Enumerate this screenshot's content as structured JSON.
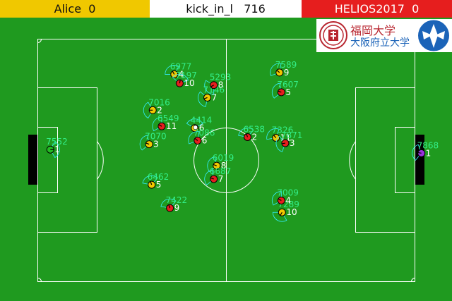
{
  "scoreboard": {
    "left_team": "Alice",
    "left_score": "0",
    "mode": "kick_in_l",
    "cycle": "716",
    "right_team": "HELIOS2017",
    "right_score": "0"
  },
  "colors": {
    "field": "#1f9a1f",
    "left_team": "#f0c800",
    "right_team": "#e61e1e",
    "label": "#33ee88",
    "view_cone": "#33eeff",
    "goalie_left": "#22bb22",
    "goalie_right": "#9933dd"
  },
  "sponsor_logo": {
    "emblem_icon": "osaka-emblem-icon",
    "text_line1": "福岡大学",
    "text_line2": "大阪府立大学",
    "wing_icon": "wing-logo-icon"
  },
  "players": [
    {
      "team": "left",
      "num": "1",
      "stamina": "7552",
      "x": -49.0,
      "y": -3.0,
      "heading": 0
    },
    {
      "team": "left",
      "num": "2",
      "stamina": "7016",
      "x": -20.5,
      "y": -14.0,
      "heading": 180
    },
    {
      "team": "left",
      "num": "3",
      "stamina": "7070",
      "x": -21.5,
      "y": -4.5,
      "heading": 200
    },
    {
      "team": "left",
      "num": "4",
      "stamina": "6977",
      "x": -14.5,
      "y": -24.0,
      "heading": 240
    },
    {
      "team": "left",
      "num": "5",
      "stamina": "6462",
      "x": -20.8,
      "y": 6.8,
      "heading": 250
    },
    {
      "type": "note"
    },
    {
      "team": "left",
      "num": "6",
      "stamina": "4414",
      "x": -8.8,
      "y": -9.0,
      "heading": 270
    },
    {
      "team": "left",
      "num": "7",
      "stamina": "7146",
      "x": -5.3,
      "y": -17.5,
      "heading": 160
    },
    {
      "team": "left",
      "num": "8",
      "stamina": "6019",
      "x": -2.7,
      "y": 1.5,
      "heading": 200
    },
    {
      "team": "left",
      "num": "9",
      "stamina": "7589",
      "x": 14.8,
      "y": -24.5,
      "heading": 220
    },
    {
      "team": "left",
      "num": "10",
      "stamina": "7289",
      "x": 15.5,
      "y": 14.5,
      "heading": 120
    },
    {
      "team": "left",
      "num": "11",
      "stamina": "7326",
      "x": 13.8,
      "y": -6.3,
      "heading": 230
    },
    {
      "team": "right",
      "num": "2",
      "stamina": "6538",
      "x": 5.9,
      "y": -6.5,
      "heading": 250
    },
    {
      "team": "right",
      "num": "3",
      "stamina": "7871",
      "x": 16.4,
      "y": -4.8,
      "heading": 170
    },
    {
      "team": "right",
      "num": "4",
      "stamina": "7009",
      "x": 15.3,
      "y": 11.2,
      "heading": 210
    },
    {
      "team": "right",
      "num": "5",
      "stamina": "7607",
      "x": 15.3,
      "y": -19.0,
      "heading": 200
    },
    {
      "team": "right",
      "num": "6",
      "stamina": "7086",
      "x": -8.0,
      "y": -5.5,
      "heading": 220
    },
    {
      "team": "right",
      "num": "7",
      "stamina": "6687",
      "x": -3.5,
      "y": 5.2,
      "heading": 200
    },
    {
      "team": "right",
      "num": "8",
      "stamina": "5293",
      "x": -3.5,
      "y": -21.0,
      "heading": 150
    },
    {
      "team": "right",
      "num": "9",
      "stamina": "7422",
      "x": -15.7,
      "y": 13.3,
      "heading": 250
    },
    {
      "team": "right",
      "num": "10",
      "stamina": "7197",
      "x": -13.0,
      "y": -21.5,
      "heading": 280
    },
    {
      "team": "right",
      "num": "11",
      "stamina": "6549",
      "x": -18.0,
      "y": -9.5,
      "heading": 210
    },
    {
      "team": "right_goalie",
      "num": "1",
      "stamina": "7868",
      "x": 54.3,
      "y": -2.0,
      "heading": 190
    }
  ],
  "ball": {
    "x": -8.6,
    "y": -9.2
  }
}
